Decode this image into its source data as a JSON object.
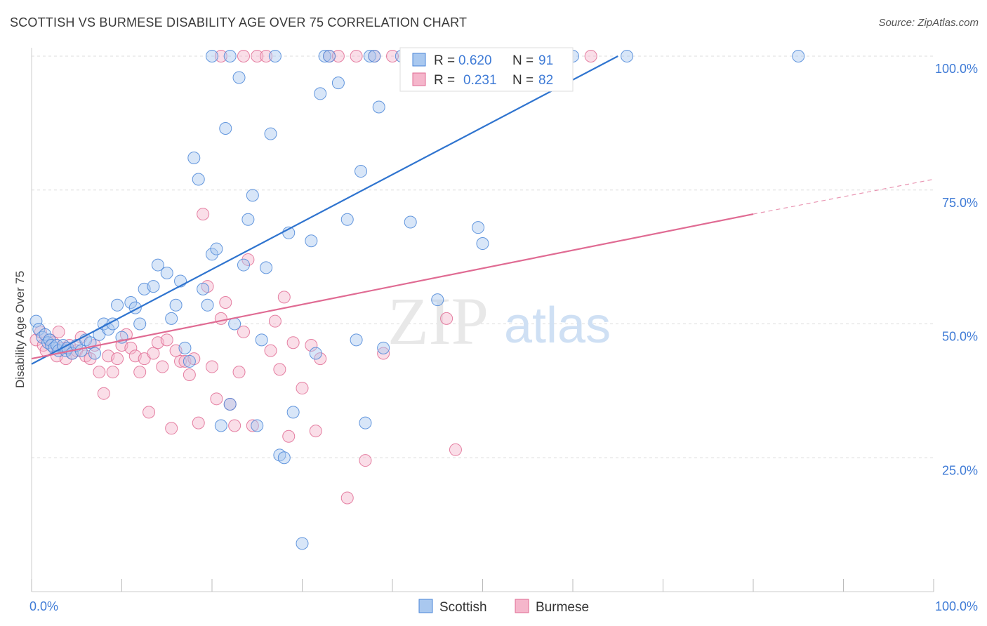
{
  "title": "SCOTTISH VS BURMESE DISABILITY AGE OVER 75 CORRELATION CHART",
  "source": "Source: ZipAtlas.com",
  "watermark": {
    "zip": "ZIP",
    "atlas": "atlas"
  },
  "colors": {
    "scottish": "#4a86d8",
    "scottish_fill": "#a9c8ef",
    "burmese": "#e06b93",
    "burmese_fill": "#f5b6cb",
    "axis_text": "#3f7bd6"
  },
  "legend": {
    "r_label": "R =",
    "n_label": "N =",
    "scottish": {
      "r": "0.620",
      "n": "91"
    },
    "burmese": {
      "r": "0.231",
      "n": "82"
    }
  },
  "bottom_legend": {
    "scottish": "Scottish",
    "burmese": "Burmese"
  },
  "chart_data": {
    "type": "scatter",
    "title": "SCOTTISH VS BURMESE DISABILITY AGE OVER 75 CORRELATION CHART",
    "xlabel": "",
    "ylabel": "Disability Age Over 75",
    "xlim": [
      0,
      100
    ],
    "ylim": [
      0,
      100
    ],
    "x_tick_labels": [
      "0.0%",
      "100.0%"
    ],
    "y_tick_labels": [
      "25.0%",
      "50.0%",
      "75.0%",
      "100.0%"
    ],
    "y_ticks": [
      25,
      50,
      75,
      100
    ],
    "grid": true,
    "legend_position": "top-center",
    "series": [
      {
        "name": "Scottish",
        "r": 0.62,
        "n": 91,
        "trend": {
          "x": [
            0,
            65
          ],
          "y": [
            42.5,
            100
          ]
        },
        "points": [
          [
            0.5,
            50.5
          ],
          [
            0.8,
            49
          ],
          [
            1.2,
            47.5
          ],
          [
            1.5,
            48
          ],
          [
            1.8,
            46.5
          ],
          [
            2,
            47
          ],
          [
            2.2,
            46
          ],
          [
            2.5,
            45.5
          ],
          [
            2.8,
            46
          ],
          [
            3,
            45
          ],
          [
            3.5,
            46
          ],
          [
            3.8,
            45
          ],
          [
            4,
            45.5
          ],
          [
            4.5,
            44.5
          ],
          [
            5,
            46
          ],
          [
            5.5,
            45
          ],
          [
            6,
            47
          ],
          [
            6.5,
            46.5
          ],
          [
            7,
            44.5
          ],
          [
            7.5,
            48
          ],
          [
            8,
            50
          ],
          [
            8.5,
            49
          ],
          [
            9,
            50
          ],
          [
            9.5,
            53.5
          ],
          [
            10,
            47.5
          ],
          [
            11,
            54
          ],
          [
            11.5,
            53
          ],
          [
            12,
            50
          ],
          [
            12.5,
            56.5
          ],
          [
            13.5,
            57
          ],
          [
            14,
            61
          ],
          [
            15,
            59.5
          ],
          [
            15.5,
            51
          ],
          [
            16,
            53.5
          ],
          [
            16.5,
            58
          ],
          [
            17,
            45.5
          ],
          [
            17.5,
            43
          ],
          [
            18,
            81
          ],
          [
            18.5,
            77
          ],
          [
            19,
            56.5
          ],
          [
            19.5,
            53.5
          ],
          [
            20,
            63
          ],
          [
            20.5,
            64
          ],
          [
            21,
            31
          ],
          [
            21.5,
            86.5
          ],
          [
            22,
            35
          ],
          [
            22.5,
            50
          ],
          [
            23,
            96
          ],
          [
            23.5,
            61
          ],
          [
            24,
            69.5
          ],
          [
            24.5,
            74
          ],
          [
            25,
            31
          ],
          [
            25.5,
            47
          ],
          [
            26,
            60.5
          ],
          [
            26.5,
            85.5
          ],
          [
            27,
            100
          ],
          [
            27.5,
            25.5
          ],
          [
            28,
            25
          ],
          [
            28.5,
            67
          ],
          [
            29,
            33.5
          ],
          [
            30,
            9
          ],
          [
            31,
            65.5
          ],
          [
            31.5,
            44.5
          ],
          [
            32,
            93
          ],
          [
            32.5,
            100
          ],
          [
            33,
            100
          ],
          [
            34,
            95
          ],
          [
            35,
            69.5
          ],
          [
            36,
            47
          ],
          [
            36.5,
            78.5
          ],
          [
            37,
            31.5
          ],
          [
            37.5,
            100
          ],
          [
            38,
            100
          ],
          [
            38.5,
            90.5
          ],
          [
            39,
            45.5
          ],
          [
            41,
            100
          ],
          [
            42,
            69
          ],
          [
            45,
            54.5
          ],
          [
            48,
            100
          ],
          [
            49.5,
            68
          ],
          [
            50,
            65
          ],
          [
            60,
            100
          ],
          [
            66,
            100
          ],
          [
            85,
            100
          ],
          [
            20,
            100
          ],
          [
            22,
            100
          ]
        ]
      },
      {
        "name": "Burmese",
        "r": 0.231,
        "n": 82,
        "trend": {
          "x": [
            0,
            80
          ],
          "y": [
            43.5,
            70.5
          ]
        },
        "trend_dashed": {
          "x": [
            80,
            100
          ],
          "y": [
            70.5,
            77
          ]
        },
        "points": [
          [
            0.5,
            47
          ],
          [
            1,
            48.5
          ],
          [
            1.3,
            46
          ],
          [
            1.6,
            45
          ],
          [
            2,
            47
          ],
          [
            2.4,
            46.5
          ],
          [
            2.8,
            44
          ],
          [
            3,
            48.5
          ],
          [
            3.5,
            45.5
          ],
          [
            3.8,
            43.5
          ],
          [
            4.2,
            46
          ],
          [
            4.5,
            44.5
          ],
          [
            5,
            45
          ],
          [
            5.5,
            47.5
          ],
          [
            6,
            44
          ],
          [
            6.5,
            43.5
          ],
          [
            7,
            46
          ],
          [
            7.5,
            41
          ],
          [
            8,
            37
          ],
          [
            8.5,
            44
          ],
          [
            9,
            41
          ],
          [
            9.5,
            43.5
          ],
          [
            10,
            46
          ],
          [
            10.5,
            48
          ],
          [
            11,
            45.5
          ],
          [
            11.5,
            44
          ],
          [
            12,
            41
          ],
          [
            12.5,
            43.5
          ],
          [
            13,
            33.5
          ],
          [
            13.5,
            44.5
          ],
          [
            14,
            46.5
          ],
          [
            14.5,
            42
          ],
          [
            15,
            47
          ],
          [
            15.5,
            30.5
          ],
          [
            16,
            45
          ],
          [
            16.5,
            43
          ],
          [
            17,
            43
          ],
          [
            17.5,
            40.5
          ],
          [
            18,
            43.5
          ],
          [
            18.5,
            31.5
          ],
          [
            19,
            70.5
          ],
          [
            19.5,
            57
          ],
          [
            20,
            42
          ],
          [
            20.5,
            36
          ],
          [
            21,
            51
          ],
          [
            21.5,
            54
          ],
          [
            22,
            35
          ],
          [
            22.5,
            31
          ],
          [
            23,
            41
          ],
          [
            23.5,
            48.5
          ],
          [
            24,
            62
          ],
          [
            24.5,
            31
          ],
          [
            25,
            100
          ],
          [
            26,
            100
          ],
          [
            26.5,
            45
          ],
          [
            27,
            50.5
          ],
          [
            27.5,
            41.5
          ],
          [
            28,
            55
          ],
          [
            28.5,
            29
          ],
          [
            29,
            46.5
          ],
          [
            30,
            38
          ],
          [
            31,
            46
          ],
          [
            31.5,
            30
          ],
          [
            32,
            43.5
          ],
          [
            33,
            100
          ],
          [
            34,
            100
          ],
          [
            35,
            17.5
          ],
          [
            36,
            100
          ],
          [
            37,
            24.5
          ],
          [
            38,
            100
          ],
          [
            39,
            44.5
          ],
          [
            40,
            100
          ],
          [
            47,
            26.5
          ],
          [
            46,
            51
          ],
          [
            62,
            100
          ],
          [
            21,
            100
          ],
          [
            23.5,
            100
          ]
        ]
      }
    ]
  }
}
